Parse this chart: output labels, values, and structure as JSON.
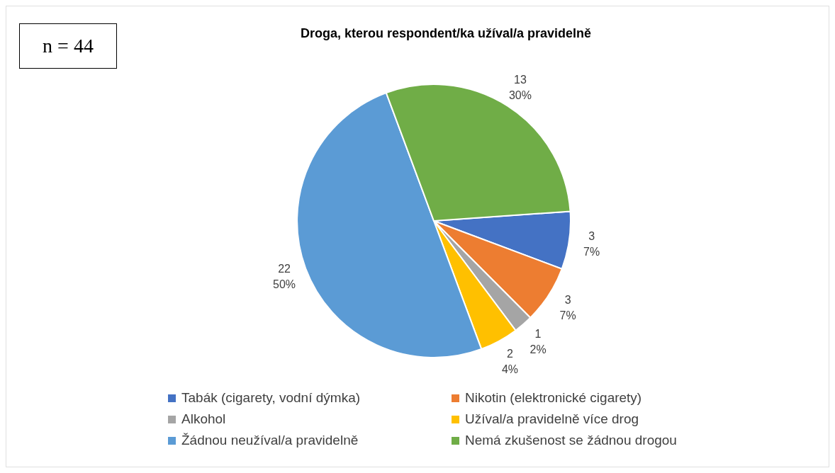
{
  "chart_data": {
    "type": "pie",
    "title": "Droga, kterou respondent/ka užíval/a pravidelně",
    "categories": [
      "Tabák (cigarety, vodní dýmka)",
      "Nikotin (elektronické cigarety)",
      "Alkohol",
      "Užíval/a pravidelně více drog",
      "Žádnou neužíval/a pravidelně",
      "Nemá zkušenost se žádnou drogou"
    ],
    "values": [
      3,
      3,
      1,
      2,
      22,
      13
    ],
    "colors": [
      "#4472c4",
      "#ed7d31",
      "#a5a5a5",
      "#ffc000",
      "#5b9bd5",
      "#70ad47"
    ],
    "value_labels": [
      "3\n7%",
      "3\n7%",
      "1\n2%",
      "2\n4%",
      "22\n50%",
      "13\n30%"
    ],
    "legend": "bottom",
    "annotations": [
      "n = 44"
    ]
  }
}
